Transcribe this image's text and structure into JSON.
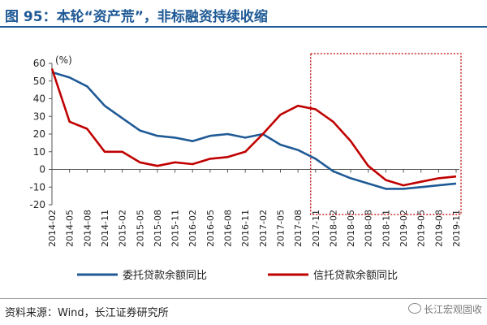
{
  "title": "图 95：本轮“资产荒”，非标融资持续收缩",
  "source": "资料来源：Wind，长江证券研究所",
  "watermark": "长江宏观固收",
  "chart_data": {
    "type": "line",
    "unit_label": "(%)",
    "ylim": [
      -20,
      60
    ],
    "yticks": [
      60,
      50,
      40,
      30,
      20,
      10,
      0,
      -10,
      -20
    ],
    "x": [
      "2014-02",
      "2014-05",
      "2014-08",
      "2014-11",
      "2015-02",
      "2015-05",
      "2015-08",
      "2015-11",
      "2016-02",
      "2016-05",
      "2016-08",
      "2016-11",
      "2017-02",
      "2017-05",
      "2017-08",
      "2017-11",
      "2018-02",
      "2018-05",
      "2018-08",
      "2018-11",
      "2019-02",
      "2019-05",
      "2019-08",
      "2019-11"
    ],
    "legend_position": "bottom",
    "grid": false,
    "highlight": {
      "from": "2017-11",
      "to": "2019-11",
      "style": "red dotted box"
    },
    "series": [
      {
        "name": "委托贷款余额同比",
        "color": "#1f5a96",
        "values": [
          55,
          52,
          47,
          36,
          29,
          22,
          19,
          18,
          16,
          19,
          20,
          18,
          20,
          14,
          11,
          6,
          -1,
          -5,
          -8,
          -11,
          -11,
          -10,
          -9,
          -8
        ]
      },
      {
        "name": "信托贷款余额同比",
        "color": "#c00000",
        "values": [
          57,
          27,
          23,
          10,
          10,
          4,
          2,
          4,
          3,
          6,
          7,
          10,
          20,
          31,
          36,
          34,
          27,
          16,
          2,
          -6,
          -9,
          -7,
          -5,
          -4
        ]
      }
    ]
  }
}
